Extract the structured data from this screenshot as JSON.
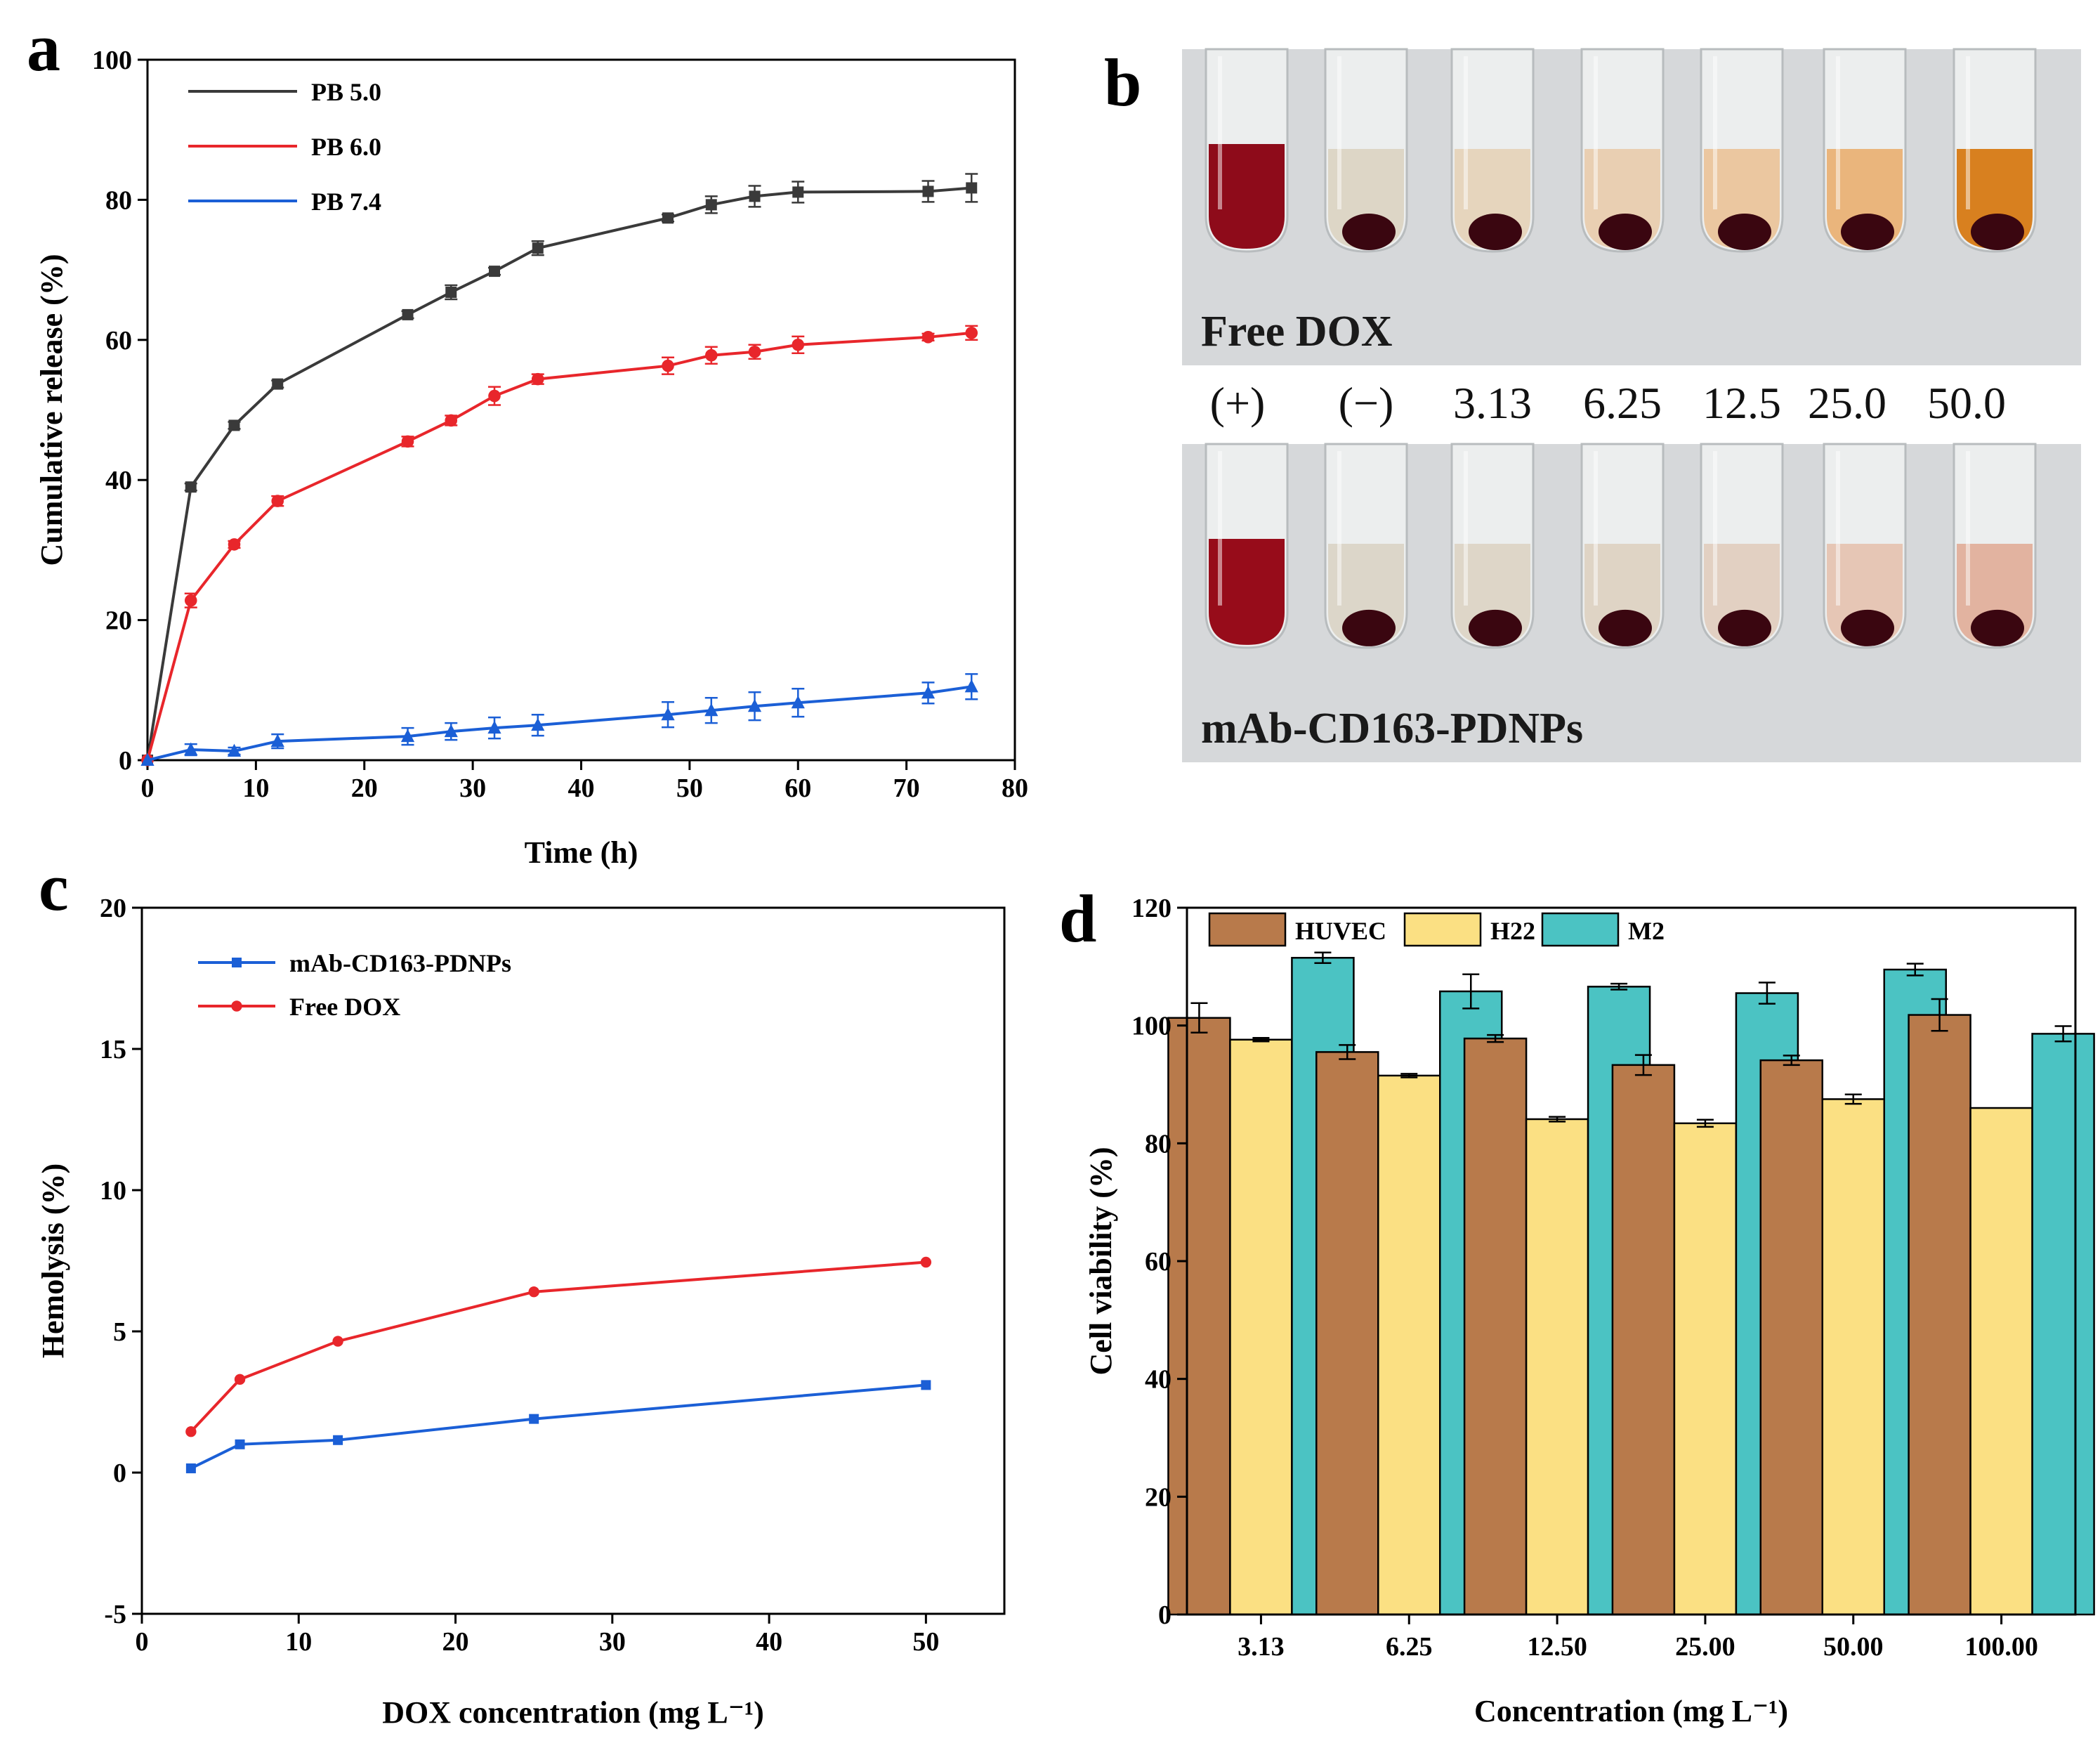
{
  "panels": {
    "a": "a",
    "b": "b",
    "c": "c",
    "d": "d"
  },
  "colors": {
    "black": "#3a3a3a",
    "red": "#e8262b",
    "blue": "#1b5fd6",
    "huvec": "#b87a4b",
    "h22": "#fbe083",
    "m2": "#4bc3c3"
  },
  "chart_data": [
    {
      "id": "a",
      "type": "line",
      "title": "",
      "xlabel": "Time (h)",
      "ylabel": "Cumulative release (%)",
      "xlim": [
        0,
        80
      ],
      "ylim": [
        0,
        100
      ],
      "xticks": [
        0,
        10,
        20,
        30,
        40,
        50,
        60,
        70,
        80
      ],
      "yticks": [
        0,
        20,
        40,
        60,
        80,
        100
      ],
      "legend_position": "top-left",
      "series": [
        {
          "name": "PB 5.0",
          "color": "#3a3a3a",
          "marker": "square",
          "x": [
            0,
            4,
            8,
            12,
            24,
            28,
            32,
            36,
            48,
            52,
            56,
            60,
            72,
            76
          ],
          "y": [
            0,
            39,
            47.8,
            53.7,
            63.6,
            66.8,
            69.8,
            73.1,
            77.4,
            79.3,
            80.5,
            81.1,
            81.2,
            81.7
          ],
          "err": [
            0,
            0.5,
            0.5,
            0.5,
            0.5,
            1.0,
            0.5,
            1.0,
            0.5,
            1.2,
            1.5,
            1.5,
            1.5,
            2.0
          ]
        },
        {
          "name": "PB 6.0",
          "color": "#e8262b",
          "marker": "circle",
          "x": [
            0,
            4,
            8,
            12,
            24,
            28,
            32,
            36,
            48,
            52,
            56,
            60,
            72,
            76
          ],
          "y": [
            0,
            22.8,
            30.8,
            37,
            45.5,
            48.5,
            52,
            54.4,
            56.3,
            57.8,
            58.3,
            59.3,
            60.4,
            61
          ],
          "err": [
            0,
            1.0,
            0.5,
            0.7,
            0.7,
            0.7,
            1.3,
            0.7,
            1.2,
            1.2,
            1.0,
            1.2,
            0.5,
            1.0
          ]
        },
        {
          "name": "PB 7.4",
          "color": "#1b5fd6",
          "marker": "triangle",
          "x": [
            0,
            4,
            8,
            12,
            24,
            28,
            32,
            36,
            48,
            52,
            56,
            60,
            72,
            76
          ],
          "y": [
            0,
            1.5,
            1.3,
            2.7,
            3.4,
            4.1,
            4.6,
            5,
            6.5,
            7.1,
            7.7,
            8.2,
            9.6,
            10.5
          ],
          "err": [
            0,
            0.8,
            0.5,
            1.0,
            1.2,
            1.2,
            1.5,
            1.5,
            1.8,
            1.8,
            2.0,
            2.0,
            1.5,
            1.8
          ]
        }
      ]
    },
    {
      "id": "c",
      "type": "line",
      "title": "",
      "xlabel": "DOX concentration (mg L⁻¹)",
      "ylabel": "Hemolysis (%)",
      "xlim": [
        0,
        55
      ],
      "ylim": [
        -5,
        20
      ],
      "xticks": [
        0,
        10,
        20,
        30,
        40,
        50
      ],
      "yticks": [
        -5,
        0,
        5,
        10,
        15,
        20
      ],
      "legend_position": "top-left",
      "series": [
        {
          "name": "mAb-CD163-PDNPs",
          "color": "#1b5fd6",
          "marker": "square",
          "x": [
            3.13,
            6.25,
            12.5,
            25,
            50
          ],
          "y": [
            0.15,
            1,
            1.15,
            1.9,
            3.1
          ]
        },
        {
          "name": "Free DOX",
          "color": "#e8262b",
          "marker": "circle",
          "x": [
            3.13,
            6.25,
            12.5,
            25,
            50
          ],
          "y": [
            1.45,
            3.3,
            4.65,
            6.4,
            7.45
          ]
        }
      ]
    },
    {
      "id": "d",
      "type": "bar",
      "title": "",
      "xlabel": "Concentration (mg L⁻¹)",
      "ylabel": "Cell viability (%)",
      "ylim": [
        0,
        120
      ],
      "yticks": [
        0,
        20,
        40,
        60,
        80,
        100,
        120
      ],
      "legend_position": "top",
      "categories": [
        "3.13",
        "6.25",
        "12.50",
        "25.00",
        "50.00",
        "100.00"
      ],
      "series": [
        {
          "name": "HUVEC",
          "color": "#b87a4b",
          "values": [
            101.3,
            95.5,
            97.8,
            93.3,
            94.1,
            101.8
          ],
          "err": [
            2.5,
            1.2,
            0.6,
            1.7,
            0.8,
            2.7
          ]
        },
        {
          "name": "H22",
          "color": "#fbe083",
          "values": [
            97.6,
            91.5,
            84.1,
            83.4,
            87.5,
            86
          ],
          "err": [
            0.3,
            0.3,
            0.4,
            0.6,
            0.8,
            0
          ]
        },
        {
          "name": "M2",
          "color": "#4bc3c3",
          "values": [
            111.5,
            105.8,
            106.6,
            105.5,
            109.5,
            98.6
          ],
          "err": [
            0.9,
            2.9,
            0.5,
            1.8,
            1.0,
            1.3
          ]
        }
      ]
    }
  ],
  "photo": {
    "top_label": "Free DOX",
    "bottom_label": "mAb-CD163-PDNPs",
    "tube_labels": [
      "(+)",
      "(−)",
      "3.13",
      "6.25",
      "12.5",
      "25.0",
      "50.0"
    ],
    "top_liquid_colors": [
      "#8e0b1a",
      "#ddd6c6",
      "#e6d5bd",
      "#e9cfb2",
      "#ebc7a0",
      "#eab57c",
      "#d8801f"
    ],
    "bottom_liquid_colors": [
      "#970c1a",
      "#dcd6c9",
      "#ded6c8",
      "#dfd4c5",
      "#e2d0c2",
      "#e6c6b5",
      "#e2b3a0"
    ]
  }
}
